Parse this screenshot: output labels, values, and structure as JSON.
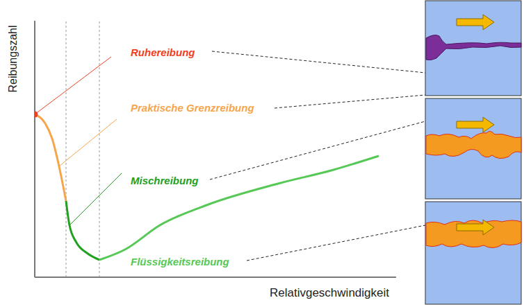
{
  "chart_data": {
    "type": "line",
    "x_label": "Relativgeschwindigkeit",
    "y_label": "Reibungszahl",
    "xlim": [
      0,
      52
    ],
    "ylim": [
      0,
      37
    ],
    "tick_labels": false,
    "grid": false,
    "series": [
      {
        "name": "Ruhereibung",
        "type": "scatter",
        "color": "#f04020",
        "marker": "circle",
        "x": [
          0
        ],
        "values": [
          23.5
        ]
      },
      {
        "name": "Praktische Grenzreibung",
        "type": "line",
        "color": "#f7a54a",
        "x": [
          0,
          1.5,
          2.5,
          3.5,
          4.5
        ],
        "values": [
          23.5,
          22.2,
          20,
          16,
          11
        ]
      },
      {
        "name": "Mischreibung",
        "type": "line",
        "color": "#22a022",
        "x": [
          4.5,
          5,
          6,
          7.5,
          9.3
        ],
        "values": [
          11,
          7.5,
          5,
          3.5,
          2.5
        ]
      },
      {
        "name": "Flüssigkeitsreibung",
        "type": "line",
        "color": "#55c855",
        "x": [
          9.3,
          13,
          18,
          25,
          35,
          43,
          49.5
        ],
        "values": [
          2.5,
          4,
          7.5,
          10.5,
          13.5,
          15.5,
          17.5
        ]
      }
    ]
  }
}
